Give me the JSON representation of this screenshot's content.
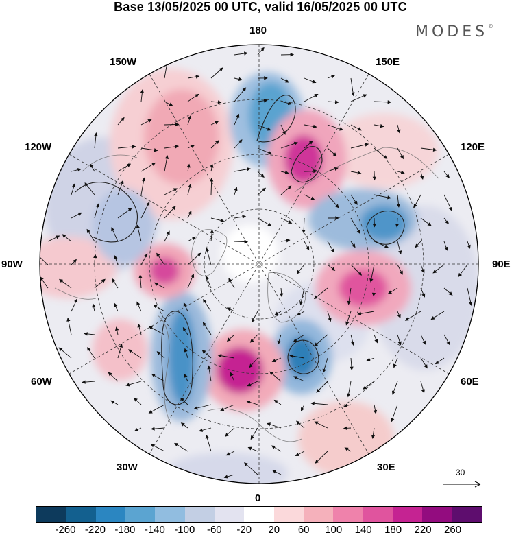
{
  "title": "Base 13/05/2025 00 UTC, valid 16/05/2025 00 UTC",
  "logo": "MODES",
  "logo_mark": "©",
  "longitude_labels": {
    "lon_180": "180",
    "lon_150e": "150E",
    "lon_120e": "120E",
    "lon_90e": "90E",
    "lon_60e": "60E",
    "lon_30e": "30E",
    "lon_0": "0",
    "lon_30w": "30W",
    "lon_60w": "60W",
    "lon_90w": "90W",
    "lon_120w": "120W",
    "lon_150w": "150W"
  },
  "reference_vector": "30",
  "colorbar": {
    "colors": [
      "#0d3a5c",
      "#13608f",
      "#2b86c1",
      "#5ba4d1",
      "#91bde0",
      "#c3cfe4",
      "#e3e3f0",
      "#ffffff",
      "#fbd9db",
      "#f5b1bb",
      "#ef82ab",
      "#e0549e",
      "#c52392",
      "#930c7f",
      "#5e0d6e"
    ],
    "tick_labels": [
      "-260",
      "-220",
      "-180",
      "-140",
      "-100",
      "-60",
      "-20",
      "20",
      "60",
      "100",
      "140",
      "180",
      "220",
      "260"
    ]
  }
}
